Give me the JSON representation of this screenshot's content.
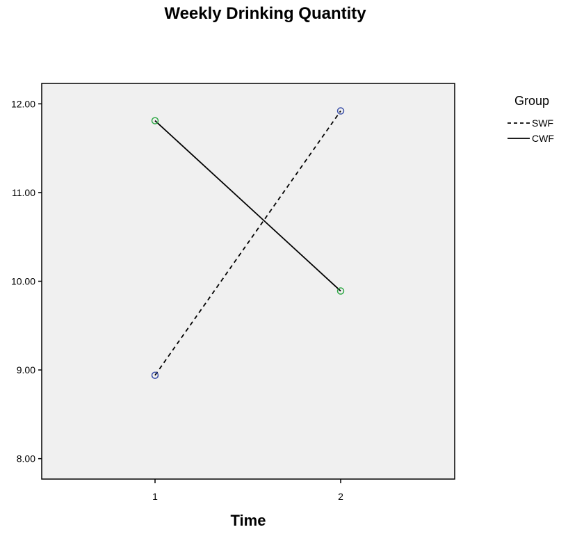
{
  "chart_data": {
    "type": "line",
    "title": "Weekly Drinking Quantity",
    "xlabel": "Time",
    "ylabel": "",
    "categories": [
      "1",
      "2"
    ],
    "y_ticks": [
      "8.00",
      "9.00",
      "10.00",
      "11.00",
      "12.00"
    ],
    "ylim": [
      7.77,
      12.23
    ],
    "grid": false,
    "legend": {
      "title": "Group",
      "placement": "top-right"
    },
    "series": [
      {
        "name": "SWF",
        "values": [
          8.94,
          11.92
        ],
        "line_style": "dashed",
        "marker_color": "#3a4fa8"
      },
      {
        "name": "CWF",
        "values": [
          11.81,
          9.89
        ],
        "line_style": "solid",
        "marker_color": "#2ea845"
      }
    ],
    "colors": {
      "plot_background": "#f0f0f0",
      "line": "#000000"
    }
  }
}
